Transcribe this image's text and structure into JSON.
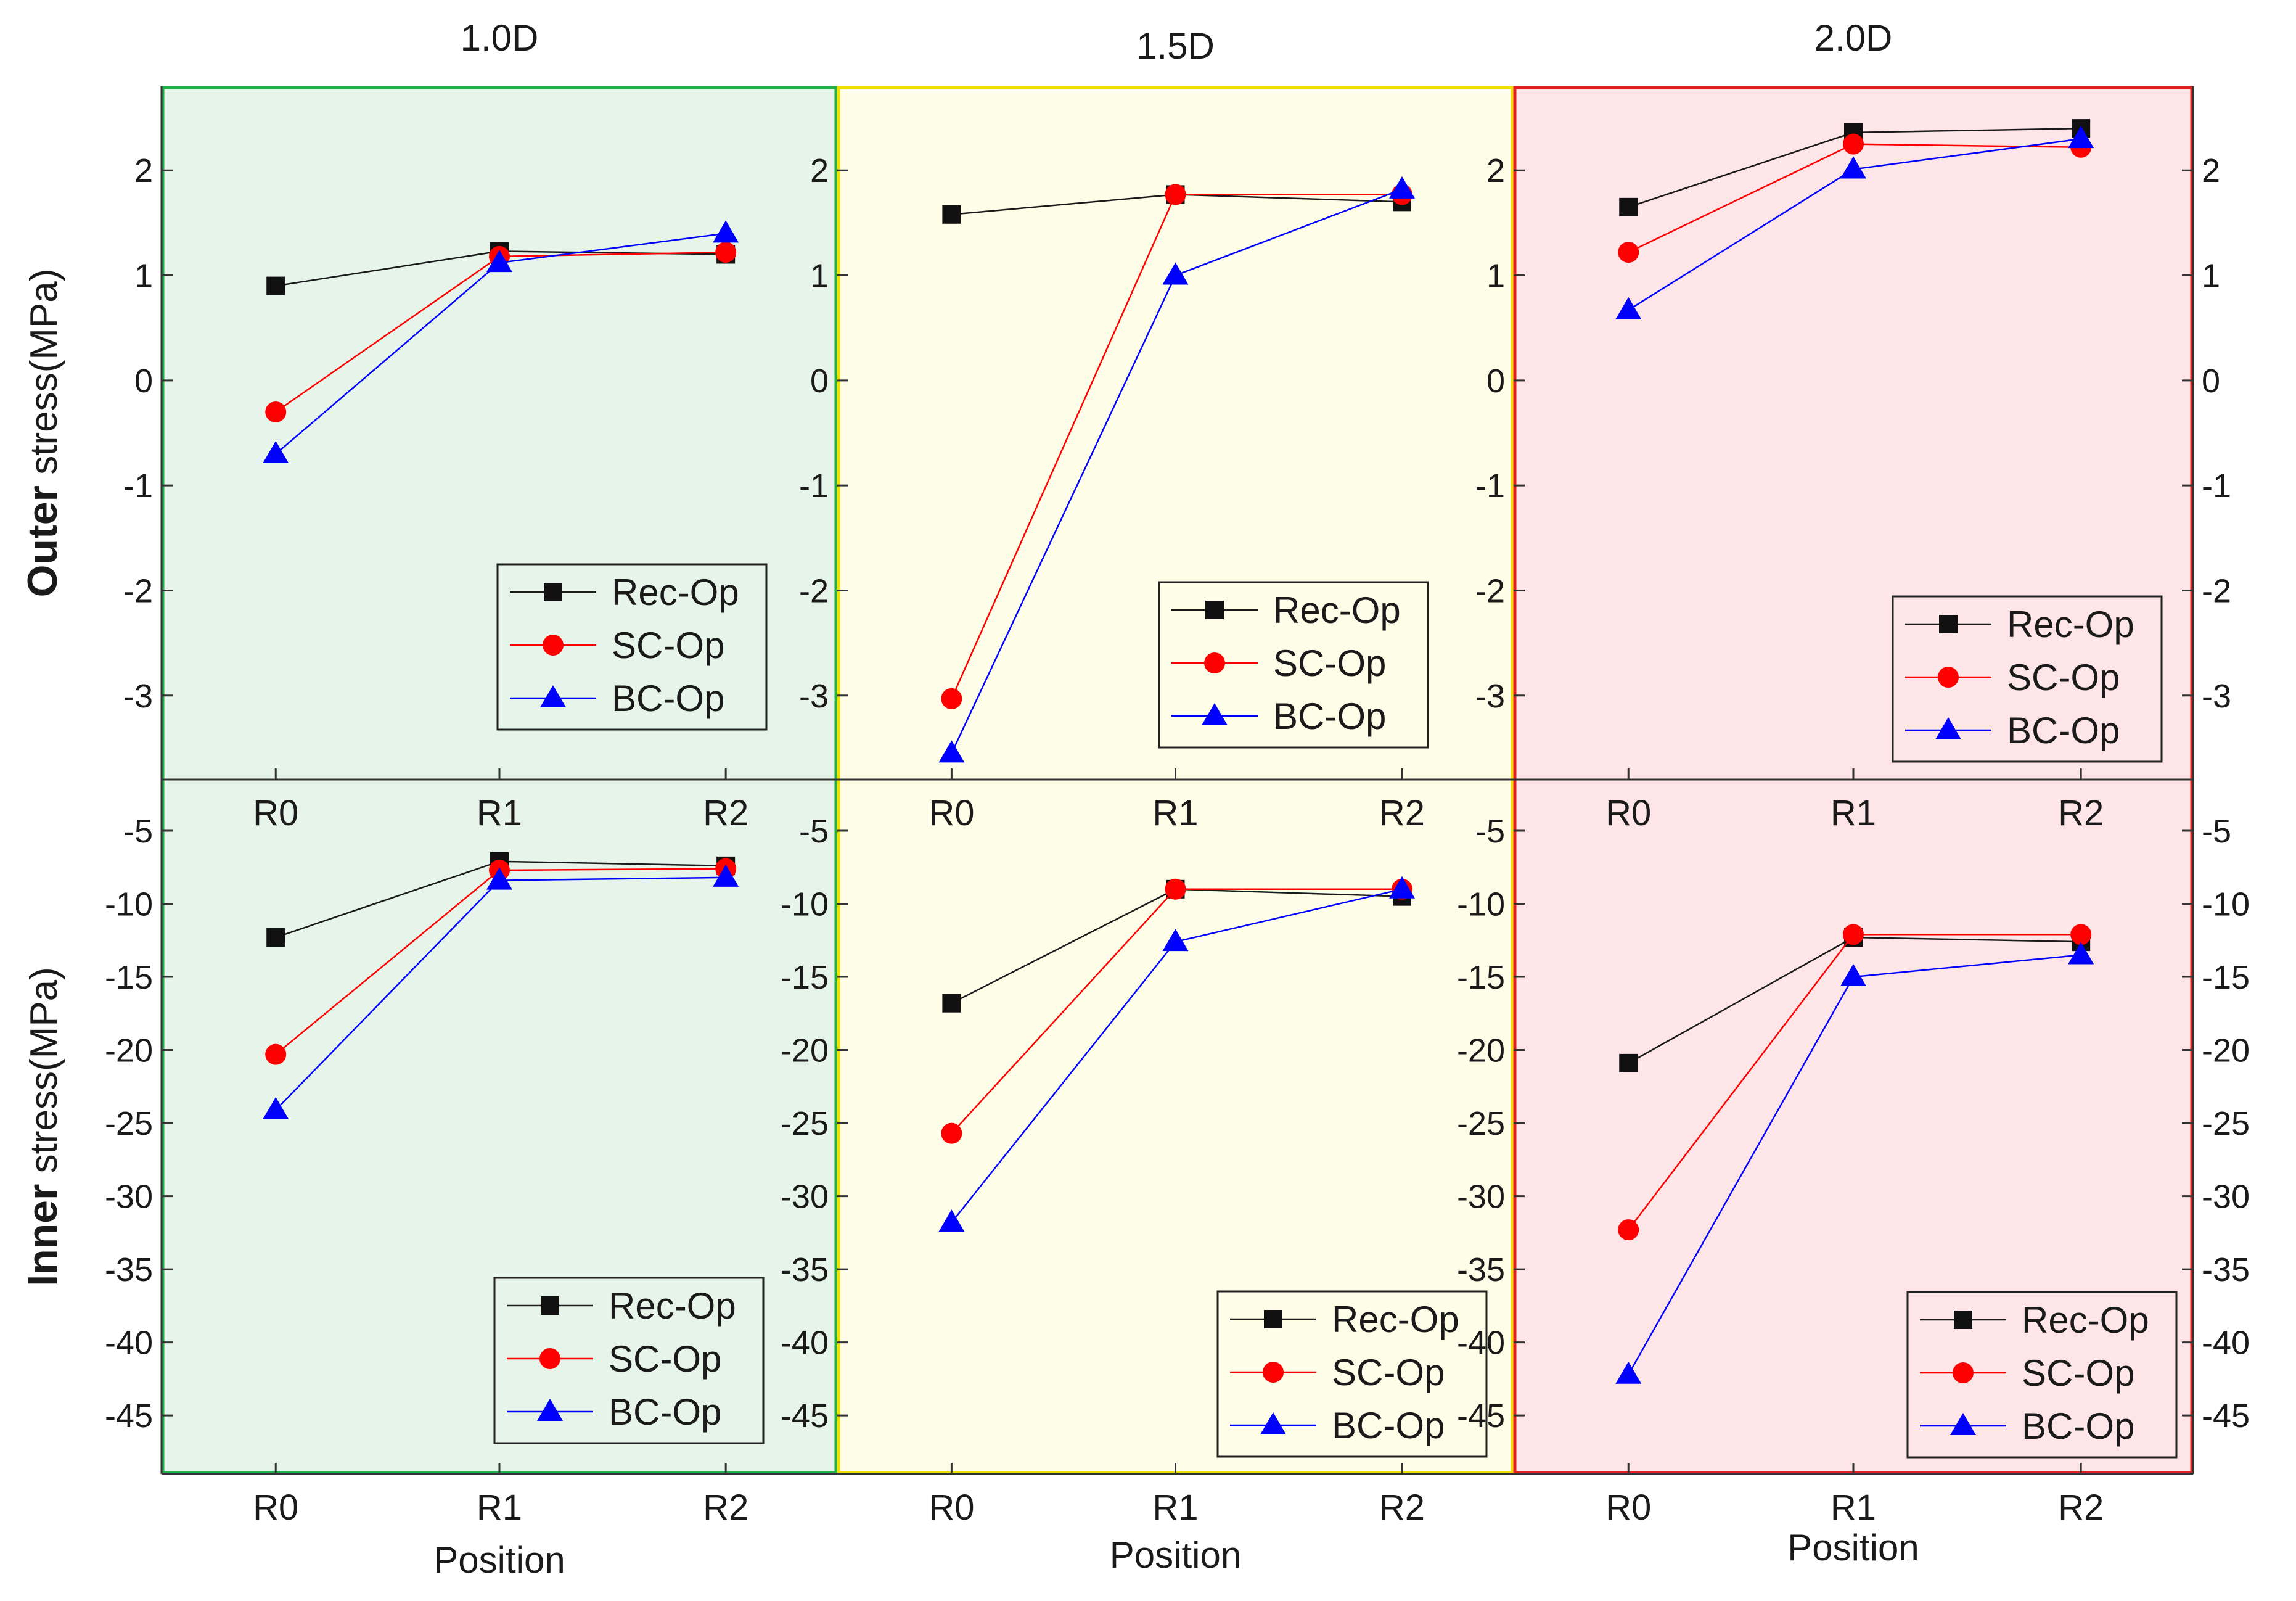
{
  "chart_data": {
    "type": "line",
    "categories": [
      "R0",
      "R1",
      "R2"
    ],
    "xlabel": "Position",
    "row_labels": [
      {
        "bold": "Outer",
        "rest": " stress(MPa)"
      },
      {
        "bold": "Inner",
        "rest": " stress(MPa)"
      }
    ],
    "rows": [
      {
        "ylim": [
          -3.8,
          2.8
        ],
        "ticks": [
          2,
          1,
          0,
          -1,
          -2,
          -3
        ]
      },
      {
        "ylim": [
          -49,
          -1.5
        ],
        "ticks": [
          -5,
          -10,
          -15,
          -20,
          -25,
          -30,
          -35,
          -40,
          -45
        ]
      }
    ],
    "series_style": [
      {
        "name": "Rec-Op",
        "color": "#1a1a1a",
        "marker": "square"
      },
      {
        "name": "SC-Op",
        "color": "#ff0000",
        "marker": "circle"
      },
      {
        "name": "BC-Op",
        "color": "#0000ff",
        "marker": "triangle"
      }
    ],
    "panels": [
      {
        "title": "1.0D",
        "background": "#e6f4ea",
        "border": "#22b04b",
        "outer": {
          "Rec-Op": [
            0.9,
            1.23,
            1.2
          ],
          "SC-Op": [
            -0.3,
            1.18,
            1.22
          ],
          "BC-Op": [
            -0.7,
            1.12,
            1.4
          ]
        },
        "inner": {
          "Rec-Op": [
            -12.3,
            -7.1,
            -7.4
          ],
          "SC-Op": [
            -20.3,
            -7.7,
            -7.6
          ],
          "BC-Op": [
            -24.1,
            -8.4,
            -8.2
          ]
        }
      },
      {
        "title": "1.5D",
        "background": "#fefde7",
        "border": "#f0e000",
        "outer": {
          "Rec-Op": [
            1.58,
            1.77,
            1.7
          ],
          "SC-Op": [
            -3.03,
            1.77,
            1.77
          ],
          "BC-Op": [
            -3.55,
            1.0,
            1.82
          ]
        },
        "inner": {
          "Rec-Op": [
            -16.8,
            -9.0,
            -9.5
          ],
          "SC-Op": [
            -25.7,
            -9.0,
            -9.0
          ],
          "BC-Op": [
            -31.8,
            -12.6,
            -9.0
          ]
        }
      },
      {
        "title": "2.0D",
        "background": "#fde5e8",
        "border": "#e02020",
        "outer": {
          "Rec-Op": [
            1.65,
            2.36,
            2.4
          ],
          "SC-Op": [
            1.22,
            2.25,
            2.22
          ],
          "BC-Op": [
            0.67,
            2.01,
            2.3
          ]
        },
        "inner": {
          "Rec-Op": [
            -20.9,
            -12.3,
            -12.6
          ],
          "SC-Op": [
            -32.3,
            -12.1,
            -12.1
          ],
          "BC-Op": [
            -42.2,
            -15.0,
            -13.5
          ]
        }
      }
    ]
  }
}
